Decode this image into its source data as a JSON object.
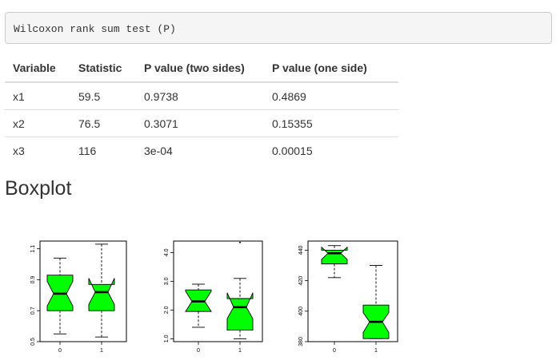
{
  "code_block": {
    "text": "Wilcoxon rank sum test (P)"
  },
  "table": {
    "headers": [
      "Variable",
      "Statistic",
      "P value (two sides)",
      "P value (one side)"
    ],
    "rows": [
      [
        "x1",
        "59.5",
        "0.9738",
        "0.4869"
      ],
      [
        "x2",
        "76.5",
        "0.3071",
        "0.15355"
      ],
      [
        "x3",
        "116",
        "3e-04",
        "0.00015"
      ]
    ]
  },
  "section": {
    "title": "Boxplot"
  },
  "colors": {
    "box_fill": "#00ff00",
    "median": "#000000",
    "frame": "#000000"
  },
  "chart_data": [
    {
      "type": "boxplot",
      "categories": [
        "0",
        "1"
      ],
      "ylim": [
        0.5,
        1.15
      ],
      "yticks": [
        "0.5",
        "0.7",
        "0.9",
        "1.1"
      ],
      "ytick_values": [
        0.5,
        0.7,
        0.9,
        1.1
      ],
      "boxes": [
        {
          "min": 0.55,
          "q1": 0.7,
          "median": 0.81,
          "q3": 0.93,
          "max": 1.04,
          "notch_lo": 0.73,
          "notch_hi": 0.89,
          "outliers": []
        },
        {
          "min": 0.53,
          "q1": 0.7,
          "median": 0.82,
          "q3": 0.87,
          "max": 1.13,
          "notch_lo": 0.74,
          "notch_hi": 0.91,
          "outliers": []
        }
      ]
    },
    {
      "type": "boxplot",
      "categories": [
        "0",
        "1"
      ],
      "ylim": [
        0.9,
        4.4
      ],
      "yticks": [
        "1.0",
        "2.0",
        "3.0",
        "4.0"
      ],
      "ytick_values": [
        1.0,
        2.0,
        3.0,
        4.0
      ],
      "boxes": [
        {
          "min": 1.4,
          "q1": 1.95,
          "median": 2.3,
          "q3": 2.7,
          "max": 2.9,
          "notch_lo": 1.95,
          "notch_hi": 2.65,
          "outliers": []
        },
        {
          "min": 1.0,
          "q1": 1.3,
          "median": 2.1,
          "q3": 2.4,
          "max": 3.1,
          "notch_lo": 1.7,
          "notch_hi": 2.6,
          "outliers": [
            4.35
          ]
        }
      ]
    },
    {
      "type": "boxplot",
      "categories": [
        "0",
        "1"
      ],
      "ylim": [
        380,
        446
      ],
      "yticks": [
        "380",
        "400",
        "420",
        "440"
      ],
      "ytick_values": [
        380,
        400,
        420,
        440
      ],
      "boxes": [
        {
          "min": 422,
          "q1": 431,
          "median": 438,
          "q3": 440,
          "max": 443,
          "notch_lo": 434,
          "notch_hi": 442,
          "outliers": []
        },
        {
          "min": 382,
          "q1": 382,
          "median": 393,
          "q3": 404,
          "max": 430,
          "notch_lo": 386,
          "notch_hi": 399,
          "outliers": []
        }
      ]
    }
  ]
}
